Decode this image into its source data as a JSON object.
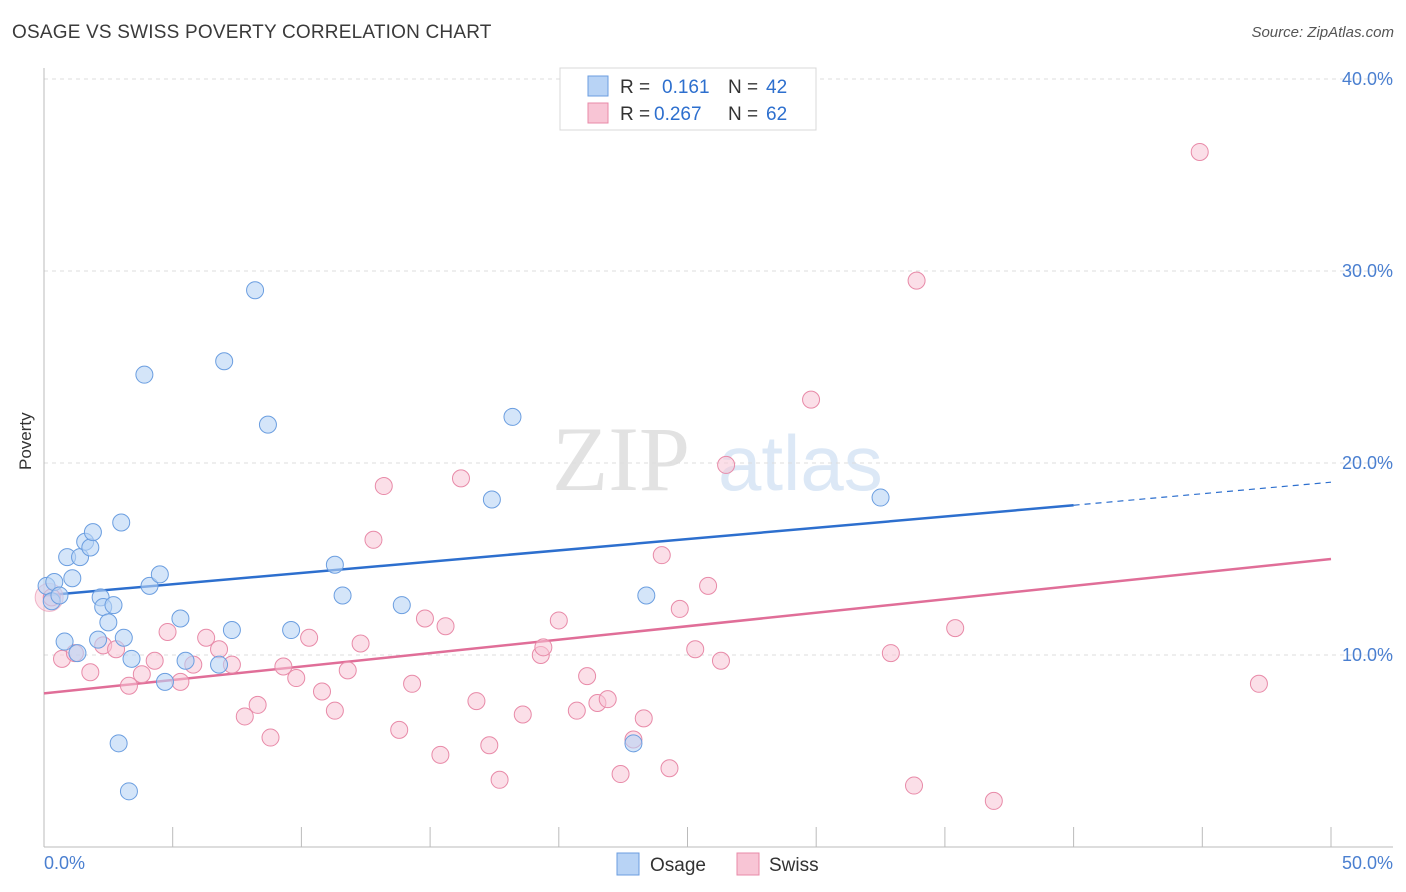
{
  "header": {
    "title": "OSAGE VS SWISS POVERTY CORRELATION CHART",
    "source": "Source: ZipAtlas.com"
  },
  "watermark": {
    "zip": "ZIP",
    "atlas": "atlas"
  },
  "legend": {
    "rows": [
      {
        "r_label": "R =",
        "r_value": "0.161",
        "n_label": "N =",
        "n_value": "42"
      },
      {
        "r_label": "R =",
        "r_value": "0.267",
        "n_label": "N =",
        "n_value": "62"
      }
    ]
  },
  "bottom_legend": {
    "osage": "Osage",
    "swiss": "Swiss"
  },
  "colors": {
    "osage_fill": "#b8d3f5",
    "osage_stroke": "#6b9ee0",
    "osage_line": "#2d6fce",
    "swiss_fill": "#f8c5d5",
    "swiss_stroke": "#e88aa8",
    "swiss_line": "#e06e98",
    "tick_text": "#4a7fd0",
    "grid": "#dddddd"
  },
  "chart_data": {
    "type": "scatter",
    "title": "OSAGE VS SWISS POVERTY CORRELATION CHART",
    "xlabel": "",
    "ylabel": "Poverty",
    "xlim": [
      0,
      50
    ],
    "ylim": [
      0,
      40
    ],
    "x_tick_labels": [
      "0.0%",
      "50.0%"
    ],
    "y_ticks": [
      10,
      20,
      30,
      40
    ],
    "y_tick_labels": [
      "10.0%",
      "20.0%",
      "30.0%",
      "40.0%"
    ],
    "grid": true,
    "legend_position": "top-center",
    "series": [
      {
        "name": "Osage",
        "r": 0.161,
        "n": 42,
        "trend": {
          "x": [
            0,
            40
          ],
          "y": [
            13.1,
            17.8
          ],
          "dashed_to": [
            50,
            19.0
          ]
        },
        "points": [
          [
            0.1,
            13.6
          ],
          [
            0.3,
            12.8
          ],
          [
            0.4,
            13.8
          ],
          [
            0.6,
            13.1
          ],
          [
            0.8,
            10.7
          ],
          [
            0.9,
            15.1
          ],
          [
            1.1,
            14.0
          ],
          [
            1.3,
            10.1
          ],
          [
            1.4,
            15.1
          ],
          [
            1.6,
            15.9
          ],
          [
            1.8,
            15.6
          ],
          [
            1.9,
            16.4
          ],
          [
            2.1,
            10.8
          ],
          [
            2.2,
            13.0
          ],
          [
            2.3,
            12.5
          ],
          [
            2.5,
            11.7
          ],
          [
            2.7,
            12.6
          ],
          [
            3.1,
            10.9
          ],
          [
            3.0,
            16.9
          ],
          [
            2.9,
            5.4
          ],
          [
            3.3,
            2.9
          ],
          [
            3.4,
            9.8
          ],
          [
            3.9,
            24.6
          ],
          [
            4.1,
            13.6
          ],
          [
            4.5,
            14.2
          ],
          [
            4.7,
            8.6
          ],
          [
            5.3,
            11.9
          ],
          [
            5.5,
            9.7
          ],
          [
            6.8,
            9.5
          ],
          [
            7.0,
            25.3
          ],
          [
            7.3,
            11.3
          ],
          [
            8.2,
            29.0
          ],
          [
            8.7,
            22.0
          ],
          [
            9.6,
            11.3
          ],
          [
            11.3,
            14.7
          ],
          [
            11.6,
            13.1
          ],
          [
            13.9,
            12.6
          ],
          [
            17.4,
            18.1
          ],
          [
            18.2,
            22.4
          ],
          [
            23.4,
            13.1
          ],
          [
            22.9,
            5.4
          ],
          [
            32.5,
            18.2
          ]
        ]
      },
      {
        "name": "Swiss",
        "r": 0.267,
        "n": 62,
        "trend": {
          "x": [
            0,
            50
          ],
          "y": [
            8.0,
            15.0
          ]
        },
        "points": [
          [
            0.3,
            13.0
          ],
          [
            0.7,
            9.8
          ],
          [
            1.2,
            10.1
          ],
          [
            1.8,
            9.1
          ],
          [
            2.3,
            10.5
          ],
          [
            2.8,
            10.3
          ],
          [
            3.3,
            8.4
          ],
          [
            3.8,
            9.0
          ],
          [
            4.3,
            9.7
          ],
          [
            4.8,
            11.2
          ],
          [
            5.3,
            8.6
          ],
          [
            5.8,
            9.5
          ],
          [
            6.3,
            10.9
          ],
          [
            6.8,
            10.3
          ],
          [
            7.3,
            9.5
          ],
          [
            7.8,
            6.8
          ],
          [
            8.3,
            7.4
          ],
          [
            8.8,
            5.7
          ],
          [
            9.3,
            9.4
          ],
          [
            9.8,
            8.8
          ],
          [
            10.3,
            10.9
          ],
          [
            10.8,
            8.1
          ],
          [
            11.3,
            7.1
          ],
          [
            11.8,
            9.2
          ],
          [
            12.3,
            10.6
          ],
          [
            12.8,
            16.0
          ],
          [
            13.2,
            18.8
          ],
          [
            13.8,
            6.1
          ],
          [
            14.3,
            8.5
          ],
          [
            14.8,
            11.9
          ],
          [
            15.4,
            4.8
          ],
          [
            15.6,
            11.5
          ],
          [
            16.2,
            19.2
          ],
          [
            16.8,
            7.6
          ],
          [
            17.3,
            5.3
          ],
          [
            17.7,
            3.5
          ],
          [
            18.6,
            6.9
          ],
          [
            19.3,
            10.0
          ],
          [
            19.4,
            10.4
          ],
          [
            20.0,
            11.8
          ],
          [
            20.7,
            7.1
          ],
          [
            21.1,
            8.9
          ],
          [
            21.5,
            7.5
          ],
          [
            21.9,
            7.7
          ],
          [
            22.4,
            3.8
          ],
          [
            22.9,
            5.6
          ],
          [
            23.3,
            6.7
          ],
          [
            24.0,
            15.2
          ],
          [
            24.3,
            4.1
          ],
          [
            24.7,
            12.4
          ],
          [
            25.3,
            10.3
          ],
          [
            25.8,
            13.6
          ],
          [
            26.3,
            9.7
          ],
          [
            26.5,
            19.9
          ],
          [
            29.8,
            23.3
          ],
          [
            32.9,
            10.1
          ],
          [
            33.8,
            3.2
          ],
          [
            33.9,
            29.5
          ],
          [
            35.4,
            11.4
          ],
          [
            36.9,
            2.4
          ],
          [
            44.9,
            36.2
          ],
          [
            47.2,
            8.5
          ]
        ]
      }
    ]
  }
}
